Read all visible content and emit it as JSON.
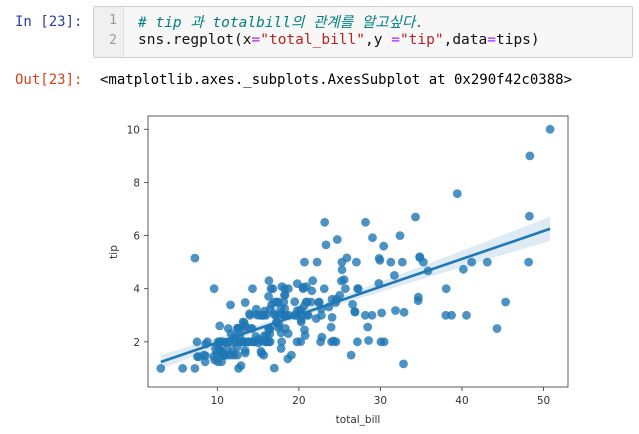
{
  "cell": {
    "in_prompt": "In [23]:",
    "out_prompt": "Out[23]:",
    "line_numbers": [
      "1",
      "2"
    ],
    "code": {
      "comment": "# tip 과 totalbill의 관계를 알고싶다.",
      "fn": "sns.regplot(",
      "kw_x": "x",
      "eq1": "=",
      "str_x": "\"total_bill\"",
      "sep": ",",
      "kw_y": "y ",
      "eq2": "=",
      "str_y": "\"tip\"",
      "sep2": ",",
      "kw_data": "data",
      "eq3": "=",
      "data_val": "tips)"
    },
    "output": "<matplotlib.axes._subplots.AxesSubplot at 0x290f42c0388>"
  },
  "chart_data": {
    "type": "scatter",
    "xlabel": "total_bill",
    "ylabel": "tip",
    "xlim": [
      1.5,
      53
    ],
    "ylim": [
      0.3,
      10.5
    ],
    "xticks": [
      10,
      20,
      30,
      40,
      50
    ],
    "yticks": [
      2,
      4,
      6,
      8,
      10
    ],
    "grid": false,
    "color": "#1f77b4",
    "regression": {
      "slope": 0.105,
      "intercept": 0.92,
      "x_range": [
        3.07,
        50.81
      ]
    },
    "points": [
      [
        16.99,
        1.01
      ],
      [
        10.34,
        1.66
      ],
      [
        21.01,
        3.5
      ],
      [
        23.68,
        3.31
      ],
      [
        24.59,
        3.61
      ],
      [
        25.29,
        4.71
      ],
      [
        8.77,
        2.0
      ],
      [
        26.88,
        3.12
      ],
      [
        15.04,
        1.96
      ],
      [
        14.78,
        3.23
      ],
      [
        10.27,
        1.71
      ],
      [
        35.26,
        5.0
      ],
      [
        15.42,
        1.57
      ],
      [
        18.43,
        3.0
      ],
      [
        14.83,
        3.02
      ],
      [
        21.58,
        3.92
      ],
      [
        10.33,
        1.67
      ],
      [
        16.29,
        3.71
      ],
      [
        16.97,
        3.5
      ],
      [
        20.65,
        3.35
      ],
      [
        17.92,
        4.08
      ],
      [
        20.29,
        2.75
      ],
      [
        15.77,
        2.23
      ],
      [
        39.42,
        7.58
      ],
      [
        19.82,
        3.18
      ],
      [
        17.81,
        2.34
      ],
      [
        13.37,
        2.0
      ],
      [
        12.69,
        2.0
      ],
      [
        21.7,
        4.3
      ],
      [
        19.65,
        3.0
      ],
      [
        9.55,
        1.45
      ],
      [
        18.35,
        2.5
      ],
      [
        15.06,
        3.0
      ],
      [
        20.69,
        2.45
      ],
      [
        17.78,
        3.27
      ],
      [
        24.06,
        3.6
      ],
      [
        16.31,
        2.0
      ],
      [
        16.93,
        3.07
      ],
      [
        18.69,
        2.31
      ],
      [
        31.27,
        5.0
      ],
      [
        16.04,
        2.24
      ],
      [
        17.46,
        2.54
      ],
      [
        13.94,
        3.06
      ],
      [
        9.68,
        1.32
      ],
      [
        30.4,
        5.6
      ],
      [
        18.29,
        3.0
      ],
      [
        22.23,
        5.0
      ],
      [
        32.4,
        6.0
      ],
      [
        28.55,
        2.05
      ],
      [
        18.04,
        3.0
      ],
      [
        12.54,
        2.5
      ],
      [
        10.29,
        2.6
      ],
      [
        34.81,
        5.2
      ],
      [
        9.94,
        1.56
      ],
      [
        25.56,
        4.34
      ],
      [
        19.49,
        3.51
      ],
      [
        38.01,
        3.0
      ],
      [
        26.41,
        1.5
      ],
      [
        11.24,
        1.76
      ],
      [
        48.27,
        6.73
      ],
      [
        20.29,
        3.21
      ],
      [
        13.81,
        2.0
      ],
      [
        11.02,
        1.98
      ],
      [
        18.29,
        3.76
      ],
      [
        17.59,
        2.64
      ],
      [
        20.08,
        3.15
      ],
      [
        16.45,
        2.47
      ],
      [
        3.07,
        1.0
      ],
      [
        20.23,
        2.01
      ],
      [
        15.01,
        2.09
      ],
      [
        12.02,
        1.97
      ],
      [
        17.07,
        3.0
      ],
      [
        26.86,
        3.14
      ],
      [
        25.28,
        5.0
      ],
      [
        14.73,
        2.2
      ],
      [
        10.51,
        1.25
      ],
      [
        17.92,
        3.08
      ],
      [
        27.2,
        4.0
      ],
      [
        22.76,
        3.0
      ],
      [
        17.29,
        2.71
      ],
      [
        19.44,
        3.0
      ],
      [
        16.66,
        3.4
      ],
      [
        10.07,
        1.83
      ],
      [
        32.68,
        5.0
      ],
      [
        15.98,
        2.03
      ],
      [
        34.83,
        5.17
      ],
      [
        13.03,
        2.0
      ],
      [
        18.28,
        4.0
      ],
      [
        24.71,
        5.85
      ],
      [
        21.16,
        3.0
      ],
      [
        28.97,
        3.0
      ],
      [
        22.49,
        3.5
      ],
      [
        5.75,
        1.0
      ],
      [
        16.32,
        4.3
      ],
      [
        22.75,
        3.25
      ],
      [
        40.17,
        4.73
      ],
      [
        27.28,
        4.0
      ],
      [
        12.03,
        1.5
      ],
      [
        21.01,
        3.0
      ],
      [
        12.46,
        1.5
      ],
      [
        11.35,
        2.5
      ],
      [
        15.38,
        3.0
      ],
      [
        44.3,
        2.5
      ],
      [
        22.42,
        3.48
      ],
      [
        20.92,
        4.08
      ],
      [
        15.36,
        1.64
      ],
      [
        20.49,
        4.06
      ],
      [
        25.21,
        4.29
      ],
      [
        18.24,
        3.76
      ],
      [
        14.31,
        4.0
      ],
      [
        14.0,
        3.0
      ],
      [
        7.25,
        1.0
      ],
      [
        38.07,
        4.0
      ],
      [
        23.95,
        2.55
      ],
      [
        25.71,
        4.0
      ],
      [
        17.31,
        3.5
      ],
      [
        29.93,
        5.07
      ],
      [
        10.65,
        1.5
      ],
      [
        12.43,
        1.8
      ],
      [
        24.08,
        2.92
      ],
      [
        11.69,
        2.31
      ],
      [
        13.42,
        1.68
      ],
      [
        14.26,
        2.5
      ],
      [
        15.95,
        2.0
      ],
      [
        12.48,
        2.52
      ],
      [
        29.8,
        4.2
      ],
      [
        8.52,
        1.48
      ],
      [
        14.52,
        2.0
      ],
      [
        11.38,
        2.0
      ],
      [
        22.82,
        2.18
      ],
      [
        19.08,
        1.5
      ],
      [
        20.27,
        2.83
      ],
      [
        11.17,
        1.5
      ],
      [
        12.26,
        2.0
      ],
      [
        18.26,
        3.25
      ],
      [
        8.51,
        1.25
      ],
      [
        10.33,
        2.0
      ],
      [
        14.15,
        2.0
      ],
      [
        16.0,
        2.0
      ],
      [
        13.16,
        2.75
      ],
      [
        17.47,
        3.5
      ],
      [
        34.3,
        6.7
      ],
      [
        41.19,
        5.0
      ],
      [
        27.05,
        5.0
      ],
      [
        16.43,
        2.3
      ],
      [
        8.35,
        1.5
      ],
      [
        18.64,
        1.36
      ],
      [
        11.87,
        1.63
      ],
      [
        9.78,
        1.73
      ],
      [
        7.51,
        2.0
      ],
      [
        14.07,
        2.5
      ],
      [
        13.13,
        2.0
      ],
      [
        17.26,
        2.74
      ],
      [
        24.55,
        2.0
      ],
      [
        19.77,
        2.0
      ],
      [
        29.85,
        5.14
      ],
      [
        48.17,
        5.0
      ],
      [
        25.0,
        3.75
      ],
      [
        13.39,
        2.61
      ],
      [
        16.49,
        2.0
      ],
      [
        21.5,
        3.5
      ],
      [
        12.66,
        2.5
      ],
      [
        16.21,
        2.0
      ],
      [
        13.81,
        2.0
      ],
      [
        17.51,
        3.0
      ],
      [
        24.52,
        3.48
      ],
      [
        20.76,
        2.24
      ],
      [
        31.71,
        4.5
      ],
      [
        10.59,
        1.61
      ],
      [
        10.63,
        2.0
      ],
      [
        50.81,
        10.0
      ],
      [
        15.81,
        3.16
      ],
      [
        7.25,
        5.15
      ],
      [
        31.85,
        3.18
      ],
      [
        16.82,
        4.0
      ],
      [
        32.9,
        3.11
      ],
      [
        17.89,
        2.0
      ],
      [
        14.48,
        2.0
      ],
      [
        9.6,
        4.0
      ],
      [
        34.63,
        3.55
      ],
      [
        34.65,
        3.68
      ],
      [
        23.33,
        5.65
      ],
      [
        45.35,
        3.5
      ],
      [
        23.17,
        6.5
      ],
      [
        40.55,
        3.0
      ],
      [
        20.69,
        5.0
      ],
      [
        20.9,
        3.5
      ],
      [
        30.46,
        2.0
      ],
      [
        18.15,
        3.5
      ],
      [
        23.1,
        4.0
      ],
      [
        15.69,
        1.5
      ],
      [
        19.81,
        4.19
      ],
      [
        28.44,
        2.56
      ],
      [
        15.48,
        2.02
      ],
      [
        16.58,
        4.0
      ],
      [
        7.56,
        1.44
      ],
      [
        10.34,
        2.0
      ],
      [
        43.11,
        5.0
      ],
      [
        13.0,
        2.0
      ],
      [
        13.51,
        2.0
      ],
      [
        18.71,
        4.0
      ],
      [
        12.74,
        2.01
      ],
      [
        13.0,
        2.0
      ],
      [
        16.4,
        2.5
      ],
      [
        20.53,
        4.0
      ],
      [
        16.47,
        3.23
      ],
      [
        26.59,
        3.41
      ],
      [
        38.73,
        3.0
      ],
      [
        24.27,
        2.03
      ],
      [
        12.76,
        2.23
      ],
      [
        30.06,
        2.0
      ],
      [
        25.89,
        5.16
      ],
      [
        48.33,
        9.0
      ],
      [
        13.27,
        2.5
      ],
      [
        28.17,
        6.5
      ],
      [
        12.9,
        1.1
      ],
      [
        28.15,
        3.0
      ],
      [
        11.59,
        1.5
      ],
      [
        7.74,
        1.44
      ],
      [
        30.14,
        3.09
      ],
      [
        12.16,
        2.2
      ],
      [
        13.42,
        3.48
      ],
      [
        8.58,
        1.92
      ],
      [
        15.98,
        3.0
      ],
      [
        13.42,
        1.58
      ],
      [
        16.27,
        2.5
      ],
      [
        10.09,
        2.0
      ],
      [
        20.45,
        3.0
      ],
      [
        13.28,
        2.72
      ],
      [
        22.12,
        2.88
      ],
      [
        24.01,
        2.0
      ],
      [
        15.69,
        3.0
      ],
      [
        11.61,
        3.39
      ],
      [
        10.77,
        1.47
      ],
      [
        15.53,
        3.0
      ],
      [
        10.07,
        1.25
      ],
      [
        12.6,
        1.0
      ],
      [
        32.83,
        1.17
      ],
      [
        35.83,
        4.67
      ],
      [
        29.03,
        5.92
      ],
      [
        27.18,
        2.0
      ],
      [
        22.67,
        2.0
      ],
      [
        17.82,
        1.75
      ],
      [
        18.78,
        3.0
      ]
    ]
  }
}
